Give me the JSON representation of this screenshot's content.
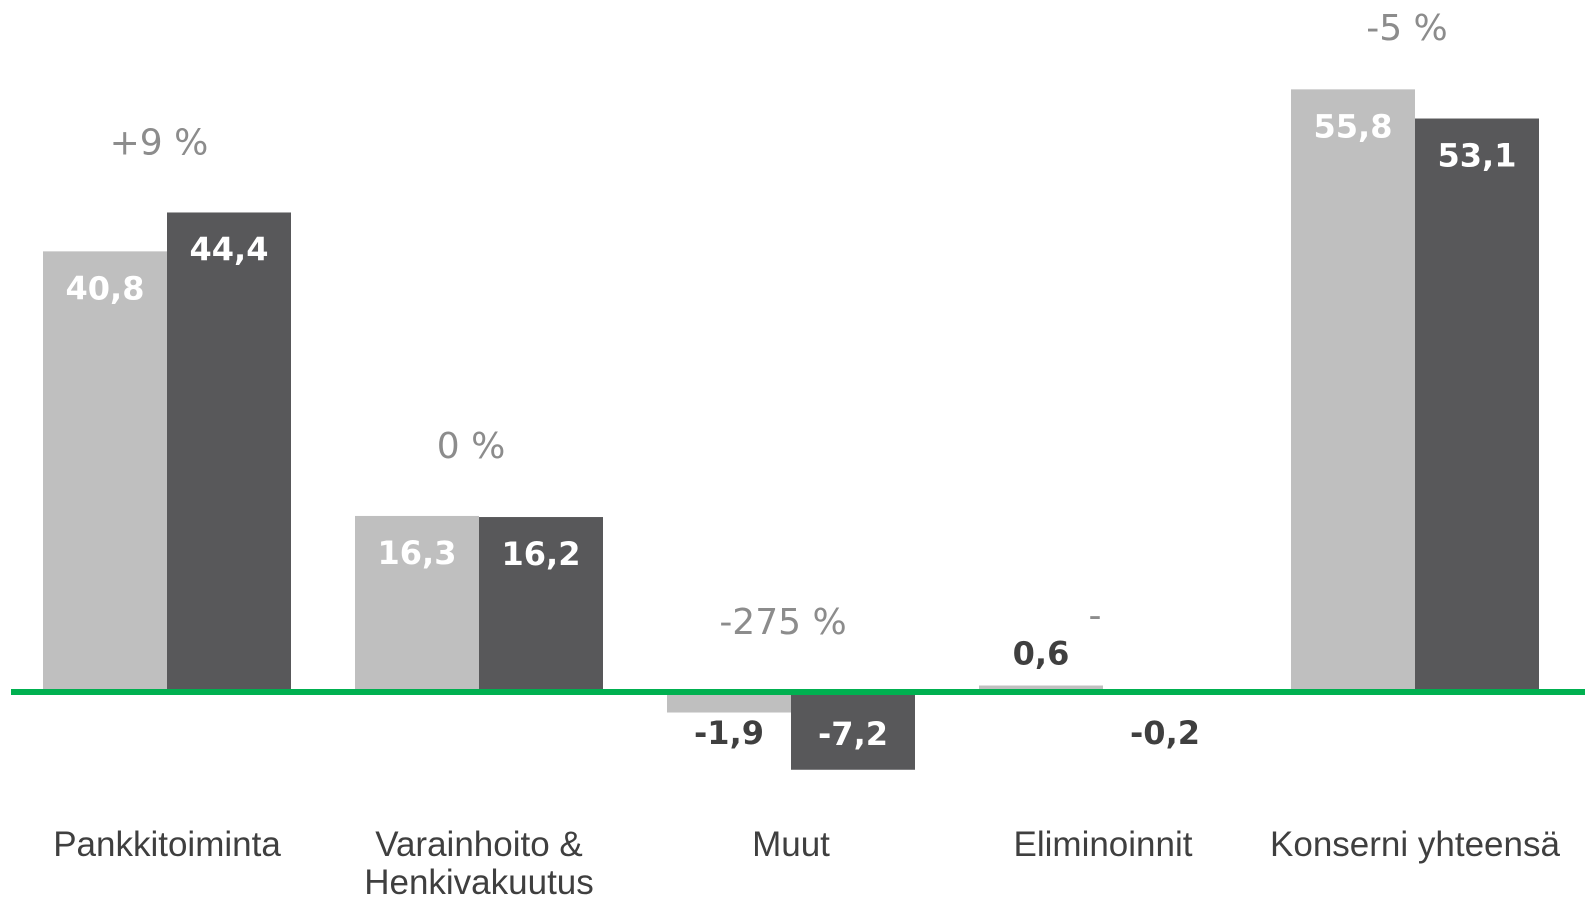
{
  "chart_data": {
    "type": "bar",
    "categories": [
      "Pankkitoiminta",
      "Varainhoito &\nHenkivakuutus",
      "Muut",
      "Eliminoinnit",
      "Konserni yhteensä"
    ],
    "series": [
      {
        "color": "#bfbfbf",
        "values": [
          40.8,
          16.3,
          -1.9,
          0.6,
          55.8
        ],
        "value_labels": [
          "40,8",
          "16,3",
          "-1,9",
          "0,6",
          "55,8"
        ]
      },
      {
        "color": "#58585a",
        "values": [
          44.4,
          16.2,
          -7.2,
          -0.2,
          53.1
        ],
        "value_labels": [
          "44,4",
          "16,2",
          "-7,2",
          "-0,2",
          "53,1"
        ]
      }
    ],
    "annotations": [
      "+9 %",
      "0 %",
      "-275 %",
      "-",
      "-5 %"
    ],
    "ylim": [
      -10,
      60
    ],
    "zero_line_color": "#00b050"
  }
}
